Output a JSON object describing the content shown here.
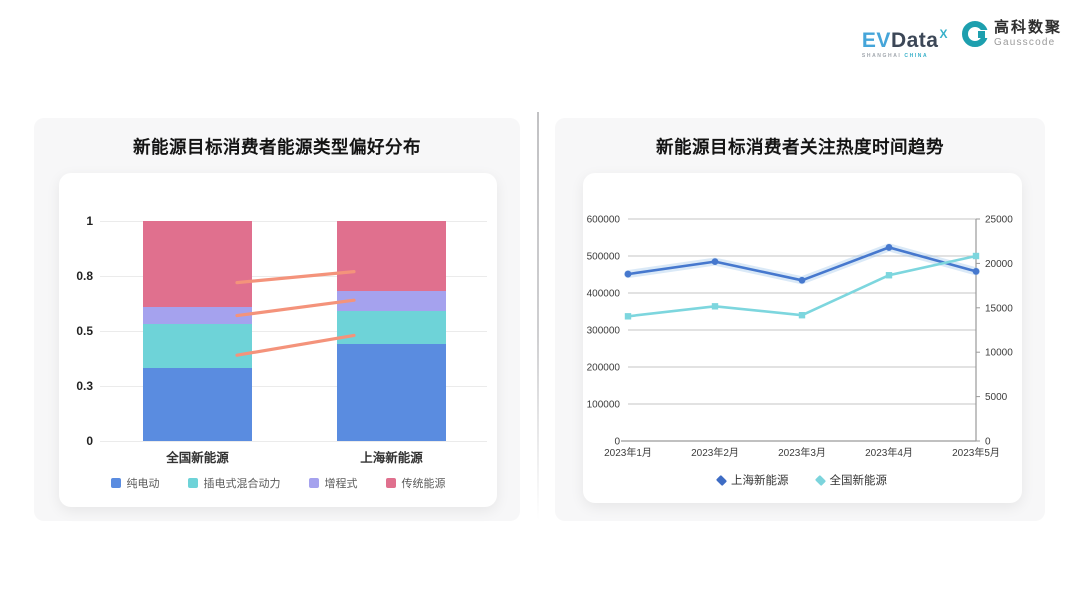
{
  "header": {
    "evdata": {
      "ev": "EV",
      "data": "Data",
      "sup": "X",
      "sub_left": "SHANGHAI ",
      "sub_right": "CHINA"
    },
    "gausscode": {
      "cn": "高科数聚",
      "en": "Gausscode"
    }
  },
  "colors": {
    "card_bg": "#f7f7f8",
    "panel_bg": "#ffffff",
    "grid_light": "#ebebeb",
    "grid_gray": "#c5c5c5",
    "axis_line": "#9a9a9a",
    "connector": "#f4937b",
    "line_blue": "#4678ce",
    "line_blue_glow": "#9dc4ea",
    "line_teal": "#7dd6de",
    "legend_blue": "#3e6cc4",
    "legend_teal": "#7cd4dc"
  },
  "chart_data": [
    {
      "type": "bar",
      "stack": "percent",
      "title": "新能源目标消费者能源类型偏好分布",
      "categories": [
        "全国新能源",
        "上海新能源"
      ],
      "series": [
        {
          "name": "纯电动",
          "color": "#5a8ce0",
          "values": [
            0.33,
            0.44
          ]
        },
        {
          "name": "插电式混合动力",
          "color": "#6ed3d8",
          "values": [
            0.2,
            0.15
          ]
        },
        {
          "name": "增程式",
          "color": "#a5a2ee",
          "values": [
            0.08,
            0.09
          ]
        },
        {
          "name": "传统能源",
          "color": "#e0708e",
          "values": [
            0.39,
            0.32
          ]
        }
      ],
      "ylim": [
        0,
        1
      ],
      "y_ticks": [
        {
          "pos": 0,
          "label": "0"
        },
        {
          "pos": 0.25,
          "label": "0.3"
        },
        {
          "pos": 0.5,
          "label": "0.5"
        },
        {
          "pos": 0.75,
          "label": "0.8"
        },
        {
          "pos": 1,
          "label": "1"
        }
      ],
      "connectors": [
        {
          "from": 0.72,
          "to": 0.77
        },
        {
          "from": 0.57,
          "to": 0.64
        },
        {
          "from": 0.39,
          "to": 0.48
        }
      ],
      "grid": "horizontal",
      "legend_position": "bottom"
    },
    {
      "type": "line",
      "title": "新能源目标消费者关注热度时间趋势",
      "x": [
        "2023年1月",
        "2023年2月",
        "2023年3月",
        "2023年4月",
        "2023年5月"
      ],
      "series": [
        {
          "name": "上海新能源",
          "axis": "right",
          "marker": "circle",
          "values": [
            18800,
            20200,
            18100,
            21800,
            19100
          ]
        },
        {
          "name": "全国新能源",
          "axis": "left",
          "marker": "square",
          "values": [
            337000,
            364000,
            340000,
            448000,
            500000
          ]
        }
      ],
      "left_axis": {
        "min": 0,
        "max": 600000,
        "tick_labels": [
          "0",
          "100000",
          "200000",
          "300000",
          "400000",
          "500000",
          "600000"
        ]
      },
      "right_axis": {
        "min": 0,
        "max": 25000,
        "tick_labels": [
          "0",
          "5000",
          "10000",
          "15000",
          "20000",
          "25000"
        ]
      },
      "grid": "horizontal",
      "legend_position": "bottom"
    }
  ]
}
